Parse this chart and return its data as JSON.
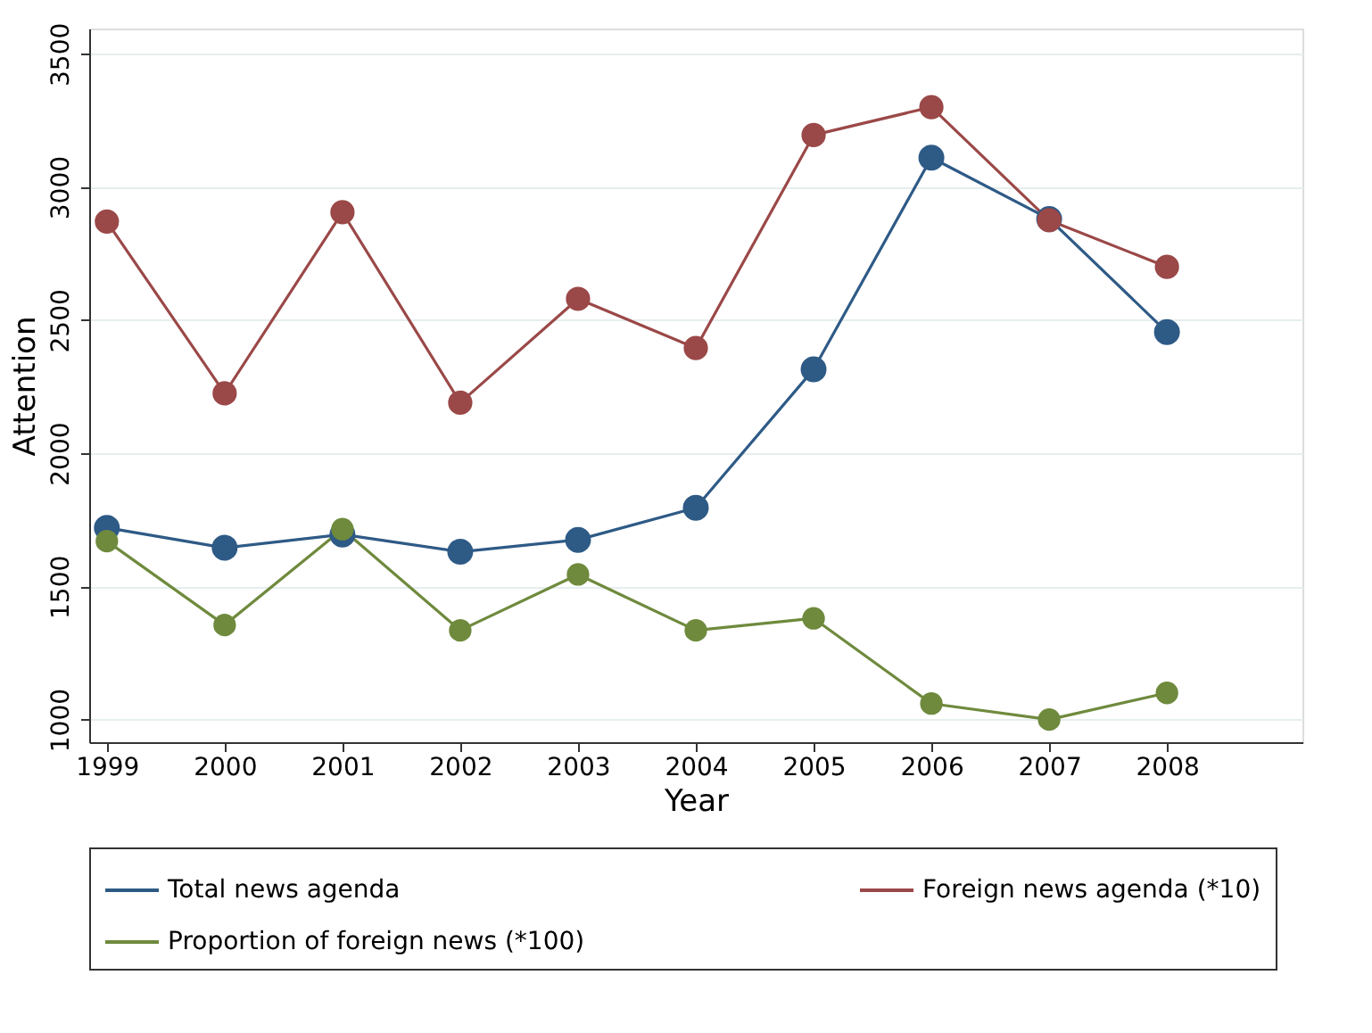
{
  "chart_data": {
    "type": "line",
    "xlabel": "Year",
    "ylabel": "Attention",
    "x": [
      1999,
      2000,
      2001,
      2002,
      2003,
      2004,
      2005,
      2006,
      2007,
      2008
    ],
    "series": [
      {
        "name": "Total news agenda",
        "color": "#2e5a86",
        "values": [
          1720,
          1645,
          1695,
          1630,
          1675,
          1795,
          2315,
          3110,
          2880,
          2455
        ]
      },
      {
        "name": "Foreign news agenda (*10)",
        "color": "#9b4848",
        "values": [
          2870,
          2225,
          2905,
          2190,
          2580,
          2395,
          3195,
          3300,
          2875,
          2700
        ]
      },
      {
        "name": "Proportion of foreign news (*100)",
        "color": "#6f8a3d",
        "values": [
          1670,
          1355,
          1715,
          1335,
          1545,
          1335,
          1380,
          1060,
          1000,
          1100
        ]
      }
    ],
    "xlim": [
      1998.85,
      2009.15
    ],
    "xticks": [
      1999,
      2000,
      2001,
      2002,
      2003,
      2004,
      2005,
      2006,
      2007,
      2008
    ],
    "ylim": [
      915,
      3595
    ],
    "yticks": [
      1000,
      1500,
      2000,
      2500,
      3000,
      3500
    ],
    "grid": "y",
    "legend": "bottom",
    "marker": "circle",
    "line_style": "solid"
  }
}
